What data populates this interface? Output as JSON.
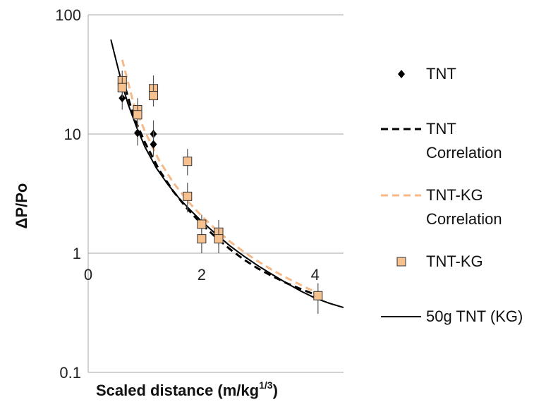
{
  "chart_data": {
    "type": "scatter",
    "xlabel": "Scaled distance (m/kg",
    "xlabel_sup": "1/3",
    "xlabel_tail": ")",
    "ylabel": "ΔP/Po",
    "xlim": [
      0,
      4.5
    ],
    "ylim": [
      0.1,
      100
    ],
    "y_scale": "log",
    "x_ticks": [
      0,
      2,
      4
    ],
    "x_tick_labels": [
      "0",
      "2",
      "4"
    ],
    "y_ticks": [
      0.1,
      1,
      10,
      100
    ],
    "y_tick_labels": [
      "0.1",
      "1",
      "10",
      "100"
    ],
    "grid": "horizontal",
    "legend_position": "right",
    "series": [
      {
        "name": "TNT",
        "kind": "points",
        "marker": "diamond",
        "color": "#000000",
        "points": [
          {
            "x": 0.6,
            "y": 20,
            "err": [
              16,
              25
            ]
          },
          {
            "x": 0.87,
            "y": 10.2,
            "err": [
              8,
              13
            ]
          },
          {
            "x": 1.15,
            "y": 10,
            "err": [
              7.5,
              13
            ]
          },
          {
            "x": 1.15,
            "y": 8.2,
            "err": [
              6.5,
              10.5
            ]
          }
        ]
      },
      {
        "name": "TNT Correlation",
        "legend_lines": [
          "TNT",
          "Correlation"
        ],
        "kind": "line",
        "style": "dashed",
        "color": "#000000",
        "x": [
          0.6,
          0.8,
          1.0,
          1.25,
          1.5,
          1.75,
          2.0,
          2.25,
          2.5,
          2.75,
          3.0,
          3.25,
          3.5,
          3.75,
          4.05
        ],
        "y": [
          30,
          14,
          8.5,
          5.0,
          3.3,
          2.35,
          1.75,
          1.36,
          1.08,
          0.88,
          0.74,
          0.64,
          0.56,
          0.5,
          0.44
        ]
      },
      {
        "name": "TNT-KG Correlation",
        "legend_lines": [
          "TNT-KG",
          "Correlation"
        ],
        "kind": "line",
        "style": "dashed",
        "color": "#f5b98a",
        "x": [
          0.6,
          0.8,
          1.0,
          1.25,
          1.5,
          1.75,
          2.0,
          2.25,
          2.5,
          2.75,
          3.0,
          3.25,
          3.5,
          3.75,
          4.05
        ],
        "y": [
          42,
          18,
          10.5,
          6.0,
          3.9,
          2.75,
          2.05,
          1.58,
          1.25,
          1.02,
          0.85,
          0.72,
          0.62,
          0.54,
          0.46
        ]
      },
      {
        "name": "TNT-KG",
        "kind": "points",
        "marker": "square",
        "color": "#f7c08f",
        "edge": "#333333",
        "points": [
          {
            "x": 0.6,
            "y": 28,
            "err": [
              22,
              34
            ]
          },
          {
            "x": 0.6,
            "y": 24.5,
            "err": [
              20,
              30
            ]
          },
          {
            "x": 0.87,
            "y": 16,
            "err": [
              12,
              20
            ]
          },
          {
            "x": 0.87,
            "y": 14.5,
            "err": [
              11,
              18
            ]
          },
          {
            "x": 1.15,
            "y": 24,
            "err": [
              19,
              31
            ]
          },
          {
            "x": 1.15,
            "y": 21,
            "err": [
              17,
              26
            ]
          },
          {
            "x": 1.75,
            "y": 5.9,
            "err": [
              4.5,
              7.5
            ]
          },
          {
            "x": 1.75,
            "y": 3.0,
            "err": [
              2.2,
              3.9
            ]
          },
          {
            "x": 2.0,
            "y": 1.75,
            "err": [
              1.3,
              2.1
            ]
          },
          {
            "x": 2.0,
            "y": 1.32,
            "err": [
              1.0,
              1.6
            ]
          },
          {
            "x": 2.3,
            "y": 1.5,
            "err": [
              1.15,
              1.9
            ]
          },
          {
            "x": 2.3,
            "y": 1.32,
            "err": [
              1.0,
              1.6
            ]
          },
          {
            "x": 4.05,
            "y": 0.44,
            "err": [
              0.31,
              0.56
            ]
          }
        ]
      },
      {
        "name": "50g TNT (KG)",
        "kind": "line",
        "style": "solid",
        "color": "#000000",
        "x": [
          0.4,
          0.5,
          0.6,
          0.7,
          0.85,
          1.0,
          1.2,
          1.4,
          1.6,
          1.8,
          2.0,
          2.25,
          2.5,
          2.75,
          3.0,
          3.25,
          3.5,
          3.75,
          4.0,
          4.25,
          4.5
        ],
        "y": [
          62,
          40,
          26,
          18,
          11.5,
          7.8,
          5.2,
          3.8,
          2.9,
          2.3,
          1.85,
          1.45,
          1.15,
          0.94,
          0.78,
          0.66,
          0.56,
          0.48,
          0.42,
          0.38,
          0.35
        ]
      }
    ]
  }
}
